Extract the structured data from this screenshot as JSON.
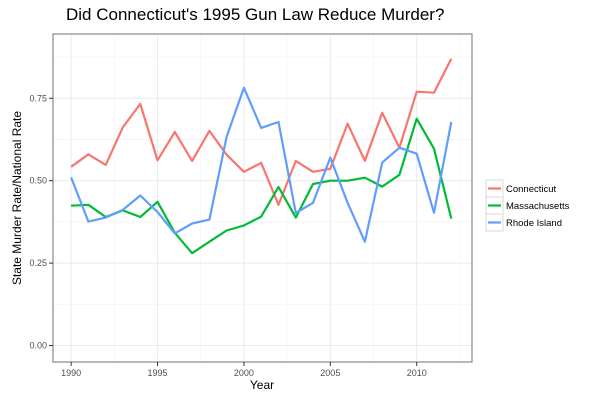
{
  "chart_data": {
    "type": "line",
    "title": "Did Connecticut's 1995 Gun Law Reduce Murder?",
    "xlabel": "Year",
    "ylabel": "State Murder Rate/National Rate",
    "x": [
      1990,
      1991,
      1992,
      1993,
      1994,
      1995,
      1996,
      1997,
      1998,
      1999,
      2000,
      2001,
      2002,
      2003,
      2004,
      2005,
      2006,
      2007,
      2008,
      2009,
      2010,
      2011,
      2012
    ],
    "series": [
      {
        "name": "Connecticut",
        "color": "#F8766D",
        "values": [
          0.542,
          0.58,
          0.548,
          0.663,
          0.733,
          0.562,
          0.648,
          0.56,
          0.651,
          0.579,
          0.527,
          0.554,
          0.427,
          0.56,
          0.527,
          0.536,
          0.673,
          0.56,
          0.706,
          0.6,
          0.77,
          0.767,
          0.87
        ]
      },
      {
        "name": "Massachusetts",
        "color": "#00BA38",
        "values": [
          0.424,
          0.427,
          0.39,
          0.41,
          0.39,
          0.436,
          0.342,
          0.28,
          0.315,
          0.349,
          0.364,
          0.391,
          0.481,
          0.388,
          0.49,
          0.5,
          0.5,
          0.509,
          0.482,
          0.518,
          0.688,
          0.597,
          0.385
        ]
      },
      {
        "name": "Rhode Island",
        "color": "#619CFF",
        "values": [
          0.51,
          0.376,
          0.388,
          0.412,
          0.455,
          0.405,
          0.34,
          0.37,
          0.382,
          0.633,
          0.782,
          0.66,
          0.678,
          0.402,
          0.433,
          0.57,
          0.433,
          0.315,
          0.555,
          0.6,
          0.582,
          0.403,
          0.678
        ]
      }
    ],
    "xticks": [
      1990,
      1995,
      2000,
      2005,
      2010
    ],
    "xtick_labels": [
      "1990",
      "1995",
      "2000",
      "2005",
      "2010"
    ],
    "yticks": [
      0.0,
      0.25,
      0.5,
      0.75
    ],
    "ytick_labels": [
      "0.00",
      "0.25",
      "0.50",
      "0.75"
    ],
    "xlim": [
      1988.95,
      2013.2
    ],
    "ylim": [
      -0.05,
      0.945
    ],
    "grid": true,
    "legend_position": "right",
    "legend": [
      "Connecticut",
      "Massachusetts",
      "Rhode Island"
    ]
  }
}
